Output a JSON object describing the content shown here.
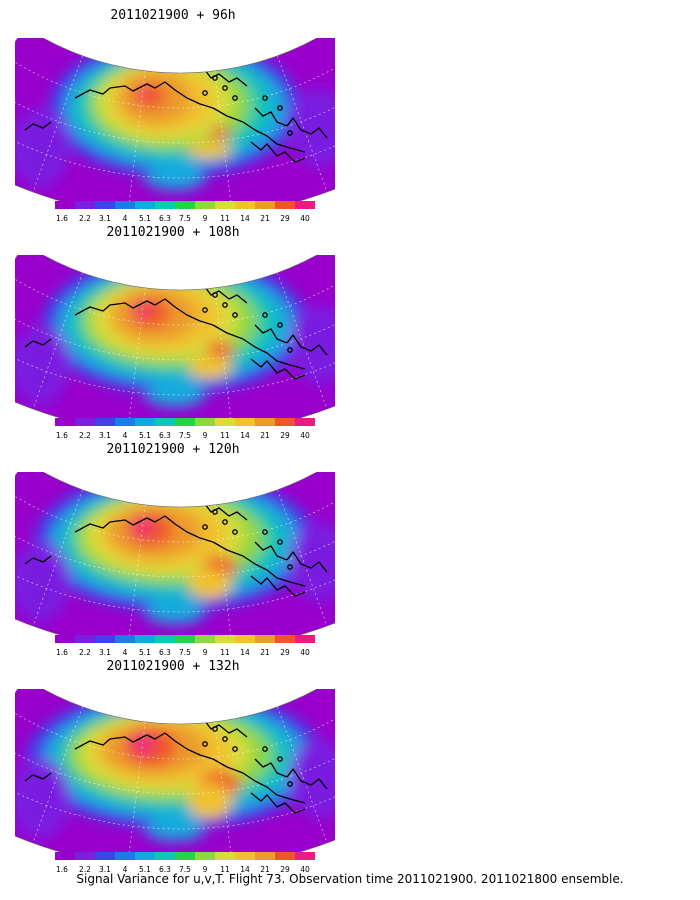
{
  "panels": [
    {
      "title": "2011021900 + 96h",
      "intensity": 0.55
    },
    {
      "title": "2011021900 + 108h",
      "intensity": 0.75
    },
    {
      "title": "2011021900 + 120h",
      "intensity": 0.95
    },
    {
      "title": "2011021900 + 132h",
      "intensity": 1.15
    }
  ],
  "colorbar": {
    "labels": [
      "1.6",
      "2.2",
      "3.1",
      "4",
      "5.1",
      "6.3",
      "7.5",
      "9",
      "11",
      "14",
      "21",
      "29",
      "40"
    ],
    "colors": [
      "#9900cc",
      "#7a1fe0",
      "#3a44e8",
      "#1e7be6",
      "#12aadd",
      "#10c8b0",
      "#24d24c",
      "#8ed642",
      "#d7dd3e",
      "#f0c22f",
      "#eb9a2e",
      "#f0542a",
      "#ee1a80"
    ]
  },
  "caption": "Signal Variance for u,v,T. Flight 73. Observation time 2011021900. 2011021800 ensemble."
}
